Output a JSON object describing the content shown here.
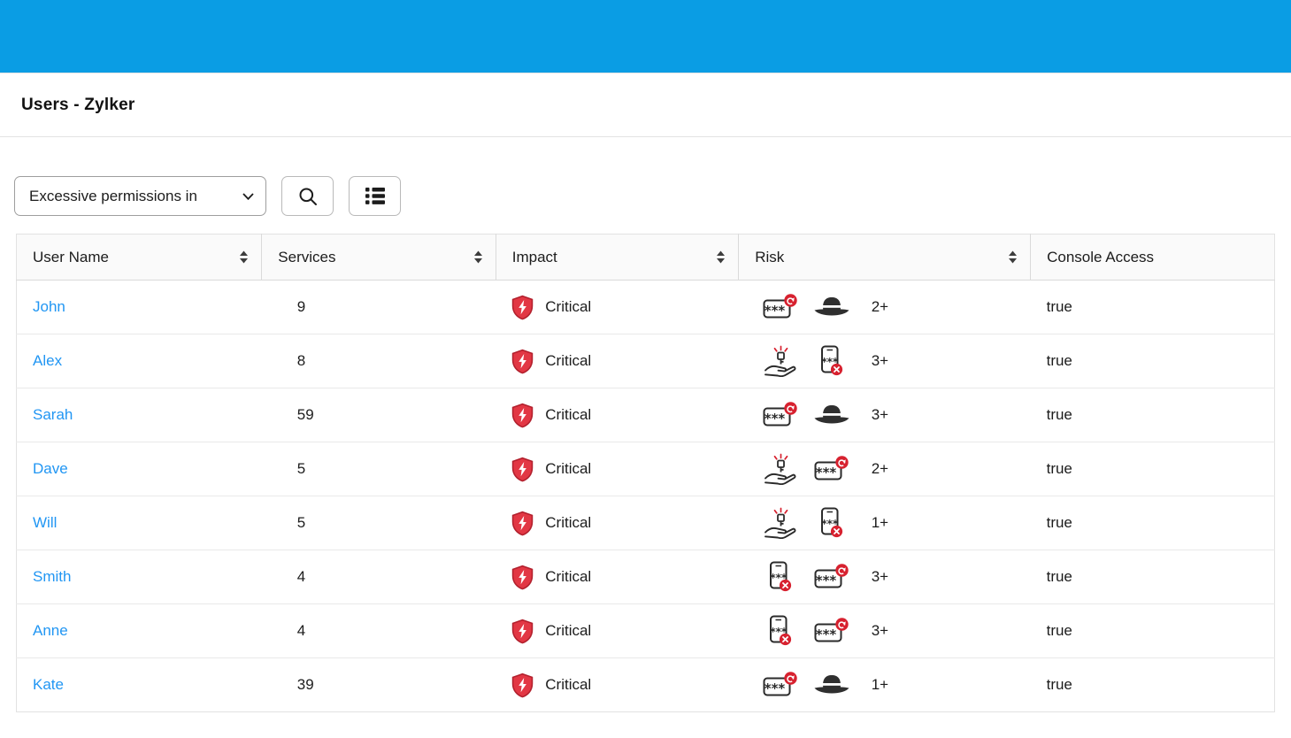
{
  "colors": {
    "brand_blue": "#0a9de4",
    "link_blue": "#2196f3",
    "critical_red": "#d7212f"
  },
  "header": {
    "title": "Users - Zylker"
  },
  "toolbar": {
    "filter_label": "Excessive permissions in",
    "filter_chevron_icon": "chevron-down-icon",
    "search_icon": "search-icon",
    "list_view_icon": "list-view-icon"
  },
  "table": {
    "columns": [
      {
        "label": "User Name",
        "sortable": true,
        "sort_icon": "sort-icon"
      },
      {
        "label": "Services",
        "sortable": true,
        "sort_icon": "sort-icon"
      },
      {
        "label": "Impact",
        "sortable": true,
        "sort_icon": "sort-icon"
      },
      {
        "label": "Risk",
        "sortable": true,
        "sort_icon": "sort-icon"
      },
      {
        "label": "Console Access",
        "sortable": false
      }
    ],
    "rows": [
      {
        "user": "John",
        "services": "9",
        "impact": "Critical",
        "impact_icon": "critical-impact-icon",
        "risk_icons": [
          "password-reset-icon",
          "spy-hat-icon"
        ],
        "risk_count": "2+",
        "console_access": "true"
      },
      {
        "user": "Alex",
        "services": "8",
        "impact": "Critical",
        "impact_icon": "critical-impact-icon",
        "risk_icons": [
          "privileged-access-icon",
          "mfa-disabled-icon"
        ],
        "risk_count": "3+",
        "console_access": "true"
      },
      {
        "user": "Sarah",
        "services": "59",
        "impact": "Critical",
        "impact_icon": "critical-impact-icon",
        "risk_icons": [
          "password-reset-icon",
          "spy-hat-icon"
        ],
        "risk_count": "3+",
        "console_access": "true"
      },
      {
        "user": "Dave",
        "services": "5",
        "impact": "Critical",
        "impact_icon": "critical-impact-icon",
        "risk_icons": [
          "privileged-access-icon",
          "password-reset-icon"
        ],
        "risk_count": "2+",
        "console_access": "true"
      },
      {
        "user": "Will",
        "services": "5",
        "impact": "Critical",
        "impact_icon": "critical-impact-icon",
        "risk_icons": [
          "privileged-access-icon",
          "mfa-disabled-icon"
        ],
        "risk_count": "1+",
        "console_access": "true"
      },
      {
        "user": "Smith",
        "services": "4",
        "impact": "Critical",
        "impact_icon": "critical-impact-icon",
        "risk_icons": [
          "mfa-disabled-icon",
          "password-reset-icon"
        ],
        "risk_count": "3+",
        "console_access": "true"
      },
      {
        "user": "Anne",
        "services": "4",
        "impact": "Critical",
        "impact_icon": "critical-impact-icon",
        "risk_icons": [
          "mfa-disabled-icon",
          "password-reset-icon"
        ],
        "risk_count": "3+",
        "console_access": "true"
      },
      {
        "user": "Kate",
        "services": "39",
        "impact": "Critical",
        "impact_icon": "critical-impact-icon",
        "risk_icons": [
          "password-reset-icon",
          "spy-hat-icon"
        ],
        "risk_count": "1+",
        "console_access": "true"
      }
    ]
  }
}
